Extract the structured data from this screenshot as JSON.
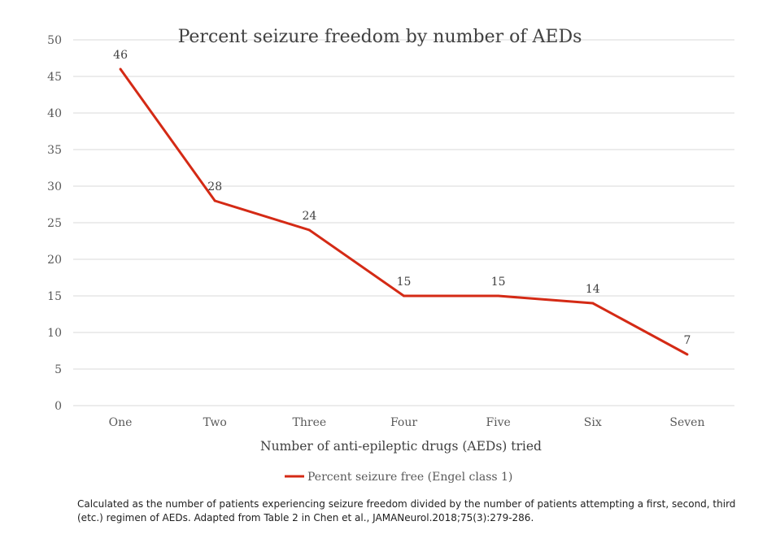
{
  "chart_data": {
    "type": "line",
    "title": "Percent seizure freedom by number of AEDs",
    "xlabel": "Number of anti-epileptic drugs (AEDs) tried",
    "ylabel": "",
    "categories": [
      "One",
      "Two",
      "Three",
      "Four",
      "Five",
      "Six",
      "Seven"
    ],
    "series": [
      {
        "name": "Percent seizure free (Engel class 1)",
        "values": [
          46,
          28,
          24,
          15,
          15,
          14,
          7
        ],
        "color": "#d42a15"
      }
    ],
    "ylim": [
      0,
      50
    ],
    "yticks": [
      0,
      5,
      10,
      15,
      20,
      25,
      30,
      35,
      40,
      45,
      50
    ],
    "grid": true,
    "legend_position": "bottom",
    "data_labels": true
  },
  "footnote": "Calculated as the number of patients experiencing seizure freedom divided by the number of patients attempting a first, second, third (etc.) regimen of AEDs. Adapted from Table 2 in Chen et al., JAMANeurol.2018;75(3):279-286."
}
